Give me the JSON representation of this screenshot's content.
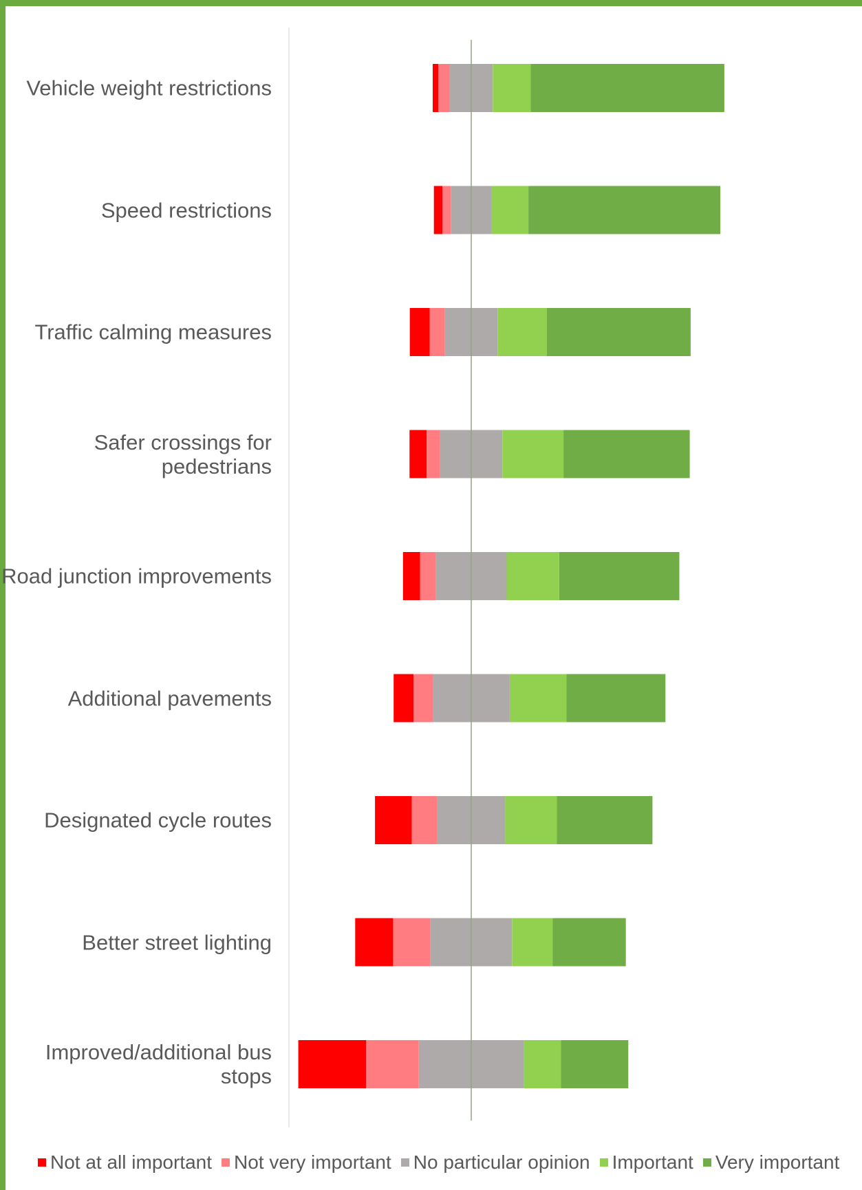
{
  "chart_data": {
    "type": "bar",
    "orientation": "horizontal",
    "stacked": "diverging",
    "title": "",
    "xlabel": "",
    "ylabel": "",
    "categories": [
      "Vehicle weight restrictions",
      "Speed restrictions",
      "Traffic calming measures",
      "Safer crossings for\npedestrians",
      "Road junction improvements",
      "Additional pavements",
      "Designated cycle routes",
      "Better street lighting",
      "Improved/additional bus\nstops"
    ],
    "series": [
      {
        "name": "Not at all important",
        "color": "#ff0000",
        "values": [
          1,
          1.5,
          3.5,
          3,
          3,
          3.5,
          6.5,
          6.7,
          12
        ]
      },
      {
        "name": "Not very important",
        "color": "#ff7c80",
        "values": [
          2,
          1.5,
          2.7,
          2.4,
          2.8,
          3.4,
          4.5,
          6.6,
          9.3
        ]
      },
      {
        "name": "No particular opinion",
        "color": "#aeaaaa",
        "values": [
          7.6,
          7.2,
          9.3,
          11,
          12.5,
          13.6,
          12,
          14.4,
          18.5
        ]
      },
      {
        "name": "Important",
        "color": "#92d050",
        "values": [
          6.7,
          6.5,
          8.7,
          10.8,
          9.3,
          10,
          9.1,
          7.2,
          6.6
        ]
      },
      {
        "name": "Very important",
        "color": "#70ad47",
        "values": [
          34.2,
          33.9,
          25.4,
          22.3,
          21.2,
          17.5,
          16.9,
          12.9,
          11.9
        ]
      }
    ],
    "legend_position": "bottom",
    "grid": false
  }
}
